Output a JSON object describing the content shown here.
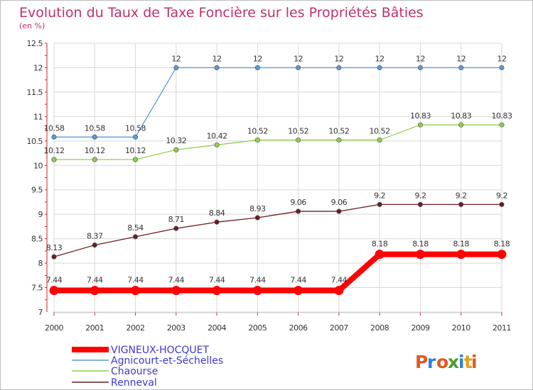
{
  "chart_data": {
    "type": "line",
    "title": "Evolution du Taux de Taxe Foncière sur les Propriétés Bâties",
    "subtitle": "(en %)",
    "categories": [
      "2000",
      "2001",
      "2002",
      "2003",
      "2004",
      "2005",
      "2006",
      "2007",
      "2008",
      "2009",
      "2010",
      "2011"
    ],
    "ylim": [
      7,
      12.5
    ],
    "yticks": [
      7,
      7.5,
      8,
      8.5,
      9,
      9.5,
      10,
      10.5,
      11,
      11.5,
      12,
      12.5
    ],
    "ytick_labels": [
      "7",
      "7.5",
      "8",
      "8.5",
      "9",
      "9.5",
      "10",
      "10.5",
      "11",
      "11.5",
      "12",
      "12.5"
    ],
    "grid": true,
    "legend_position": "bottom-left",
    "series": [
      {
        "name": "Agnicourt-et-Séchelles",
        "color": "#5b9bd5",
        "values": [
          10.58,
          10.58,
          10.58,
          12,
          12,
          12,
          12,
          12,
          12,
          12,
          12,
          12
        ],
        "labels": [
          "10.58",
          "10.58",
          "10.58",
          "12",
          "12",
          "12",
          "12",
          "12",
          "12",
          "12",
          "12",
          "12"
        ]
      },
      {
        "name": "Chaourse",
        "color": "#8fd14f",
        "values": [
          10.12,
          10.12,
          10.12,
          10.32,
          10.42,
          10.52,
          10.52,
          10.52,
          10.52,
          10.83,
          10.83,
          10.83
        ],
        "labels": [
          "10.12",
          "10.12",
          "10.12",
          "10.32",
          "10.42",
          "10.52",
          "10.52",
          "10.52",
          "10.52",
          "10.83",
          "10.83",
          "10.83"
        ]
      },
      {
        "name": "Renneval",
        "color": "#6b1f22",
        "values": [
          8.13,
          8.37,
          8.54,
          8.71,
          8.84,
          8.93,
          9.06,
          9.06,
          9.2,
          9.2,
          9.2,
          9.2
        ],
        "labels": [
          "8.13",
          "8.37",
          "8.54",
          "8.71",
          "8.84",
          "8.93",
          "9.06",
          "9.06",
          "9.2",
          "9.2",
          "9.2",
          "9.2"
        ]
      },
      {
        "name": "VIGNEUX-HOCQUET",
        "color": "#ff0000",
        "values": [
          7.44,
          7.44,
          7.44,
          7.44,
          7.44,
          7.44,
          7.44,
          7.44,
          8.18,
          8.18,
          8.18,
          8.18
        ],
        "labels": [
          "7.44",
          "7.44",
          "7.44",
          "7.44",
          "7.44",
          "7.44",
          "7.44",
          "7.44",
          "8.18",
          "8.18",
          "8.18",
          "8.18"
        ]
      }
    ],
    "legend": [
      "VIGNEUX-HOCQUET",
      "Agnicourt-et-Séchelles",
      "Chaourse",
      "Renneval"
    ]
  },
  "brand": {
    "logo_text": "Proxiti",
    "logo_colors": [
      "#e64a19",
      "#1e88e5",
      "#7cb342",
      "#fbc02d"
    ]
  }
}
